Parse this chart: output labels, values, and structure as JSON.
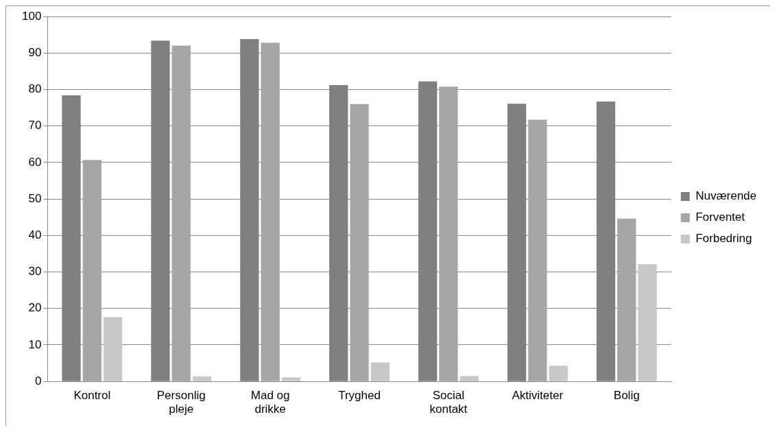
{
  "chart_data": {
    "type": "bar",
    "categories": [
      "Kontrol",
      "Personlig pleje",
      "Mad og drikke",
      "Tryghed",
      "Social kontakt",
      "Aktiviteter",
      "Bolig"
    ],
    "series": [
      {
        "name": "Nuværende",
        "color": "#808080",
        "values": [
          78.4,
          93.4,
          93.8,
          81.2,
          82.2,
          76.1,
          76.7
        ]
      },
      {
        "name": "Forventet",
        "color": "#a6a6a6",
        "values": [
          60.7,
          92.0,
          92.8,
          76.0,
          80.8,
          71.7,
          44.6
        ]
      },
      {
        "name": "Forbedring",
        "color": "#c8c8c8",
        "values": [
          17.6,
          1.4,
          1.1,
          5.2,
          1.5,
          4.3,
          32.1
        ]
      }
    ],
    "ylim": [
      0,
      100
    ],
    "yticks": [
      0,
      10,
      20,
      30,
      40,
      50,
      60,
      70,
      80,
      90,
      100
    ],
    "grid": "y",
    "legend": "right"
  }
}
